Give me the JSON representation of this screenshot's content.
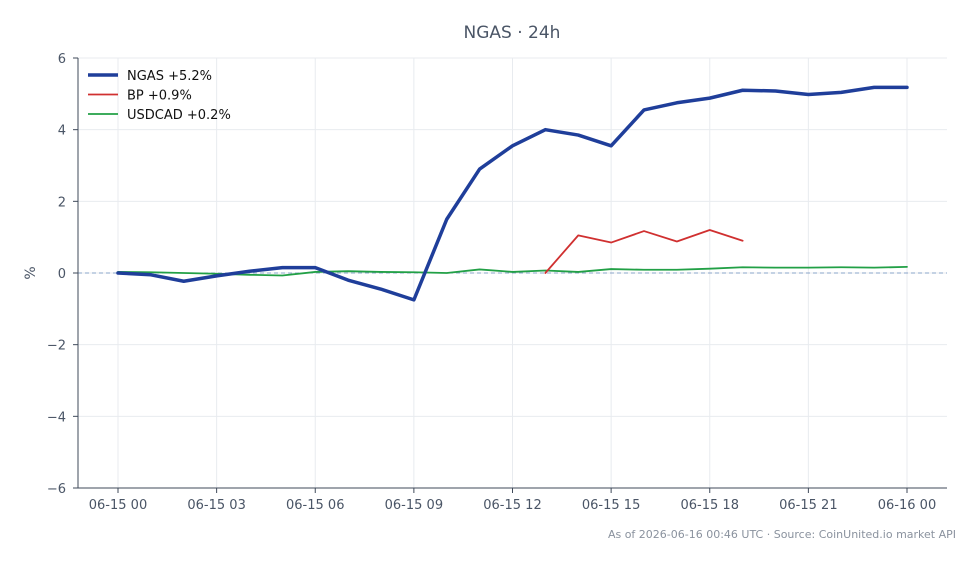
{
  "chart_data": {
    "type": "line",
    "title": "NGAS · 24h",
    "xlabel": "",
    "ylabel": "%",
    "ylim": [
      -6,
      6
    ],
    "grid": true,
    "legend_position": "top-left",
    "zero_line": 0,
    "x": [
      "06-15 00",
      "06-15 01",
      "06-15 02",
      "06-15 03",
      "06-15 04",
      "06-15 05",
      "06-15 06",
      "06-15 07",
      "06-15 08",
      "06-15 09",
      "06-15 10",
      "06-15 11",
      "06-15 12",
      "06-15 13",
      "06-15 14",
      "06-15 15",
      "06-15 16",
      "06-15 17",
      "06-15 18",
      "06-15 19",
      "06-15 20",
      "06-15 21",
      "06-15 22",
      "06-15 23",
      "06-16 00"
    ],
    "x_ticks": [
      "06-15 00",
      "06-15 03",
      "06-15 06",
      "06-15 09",
      "06-15 12",
      "06-15 15",
      "06-15 18",
      "06-15 21",
      "06-16 00"
    ],
    "y_ticks": [
      -6,
      -4,
      -2,
      0,
      2,
      4,
      6
    ],
    "y_tick_labels": [
      "−6",
      "−4",
      "−2",
      "0",
      "2",
      "4",
      "6"
    ],
    "series": [
      {
        "name": "NGAS +5.2%",
        "color": "#1f3e9a",
        "width": 3.5,
        "values": [
          0.0,
          -0.05,
          -0.23,
          -0.08,
          0.05,
          0.15,
          0.15,
          -0.2,
          -0.45,
          -0.75,
          1.5,
          2.9,
          3.55,
          4.0,
          3.85,
          3.55,
          4.55,
          4.75,
          4.88,
          5.1,
          5.08,
          4.98,
          5.04,
          5.18,
          5.18
        ]
      },
      {
        "name": "BP +0.9%",
        "color": "#d03030",
        "width": 1.8,
        "values": [
          null,
          null,
          null,
          null,
          null,
          null,
          null,
          null,
          null,
          null,
          null,
          null,
          null,
          0.0,
          1.05,
          0.85,
          1.17,
          0.88,
          1.2,
          0.9,
          null,
          null,
          null,
          null,
          null
        ]
      },
      {
        "name": "USDCAD +0.2%",
        "color": "#22a046",
        "width": 1.8,
        "values": [
          0.03,
          0.02,
          0.0,
          -0.02,
          -0.05,
          -0.07,
          0.03,
          0.05,
          0.03,
          0.02,
          0.0,
          0.1,
          0.03,
          0.07,
          0.03,
          0.11,
          0.09,
          0.09,
          0.12,
          0.16,
          0.15,
          0.15,
          0.16,
          0.15,
          0.17
        ]
      }
    ],
    "footer": "As of 2026-06-16 00:46 UTC · Source: CoinUnited.io market API"
  }
}
